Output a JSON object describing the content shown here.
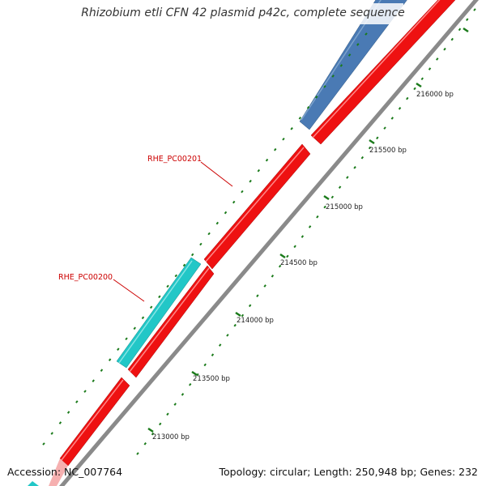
{
  "header": {
    "title": "Rhizobium etli CFN 42 plasmid p42c, complete sequence"
  },
  "footer": {
    "accession": "Accession: NC_007764",
    "stats": "Topology: circular; Length: 250,948 bp; Genes: 232"
  },
  "scale": {
    "labels": [
      "213000 bp",
      "213500 bp",
      "214000 bp",
      "214500 bp",
      "215000 bp",
      "215500 bp",
      "216000 bp"
    ]
  },
  "genes": [
    {
      "label": "RHE_PC00200",
      "color": "#22c7c7"
    },
    {
      "label": "RHE_PC00201",
      "color": "#ee1111"
    }
  ],
  "colors": {
    "forward_cds": "#ee1111",
    "reverse_cds_cyan": "#22c7c7",
    "reverse_cds_blue": "#4a7ab4",
    "backbone": "#8a8a8a",
    "tick": "#1a7a1a",
    "label_red": "#cc0000"
  }
}
